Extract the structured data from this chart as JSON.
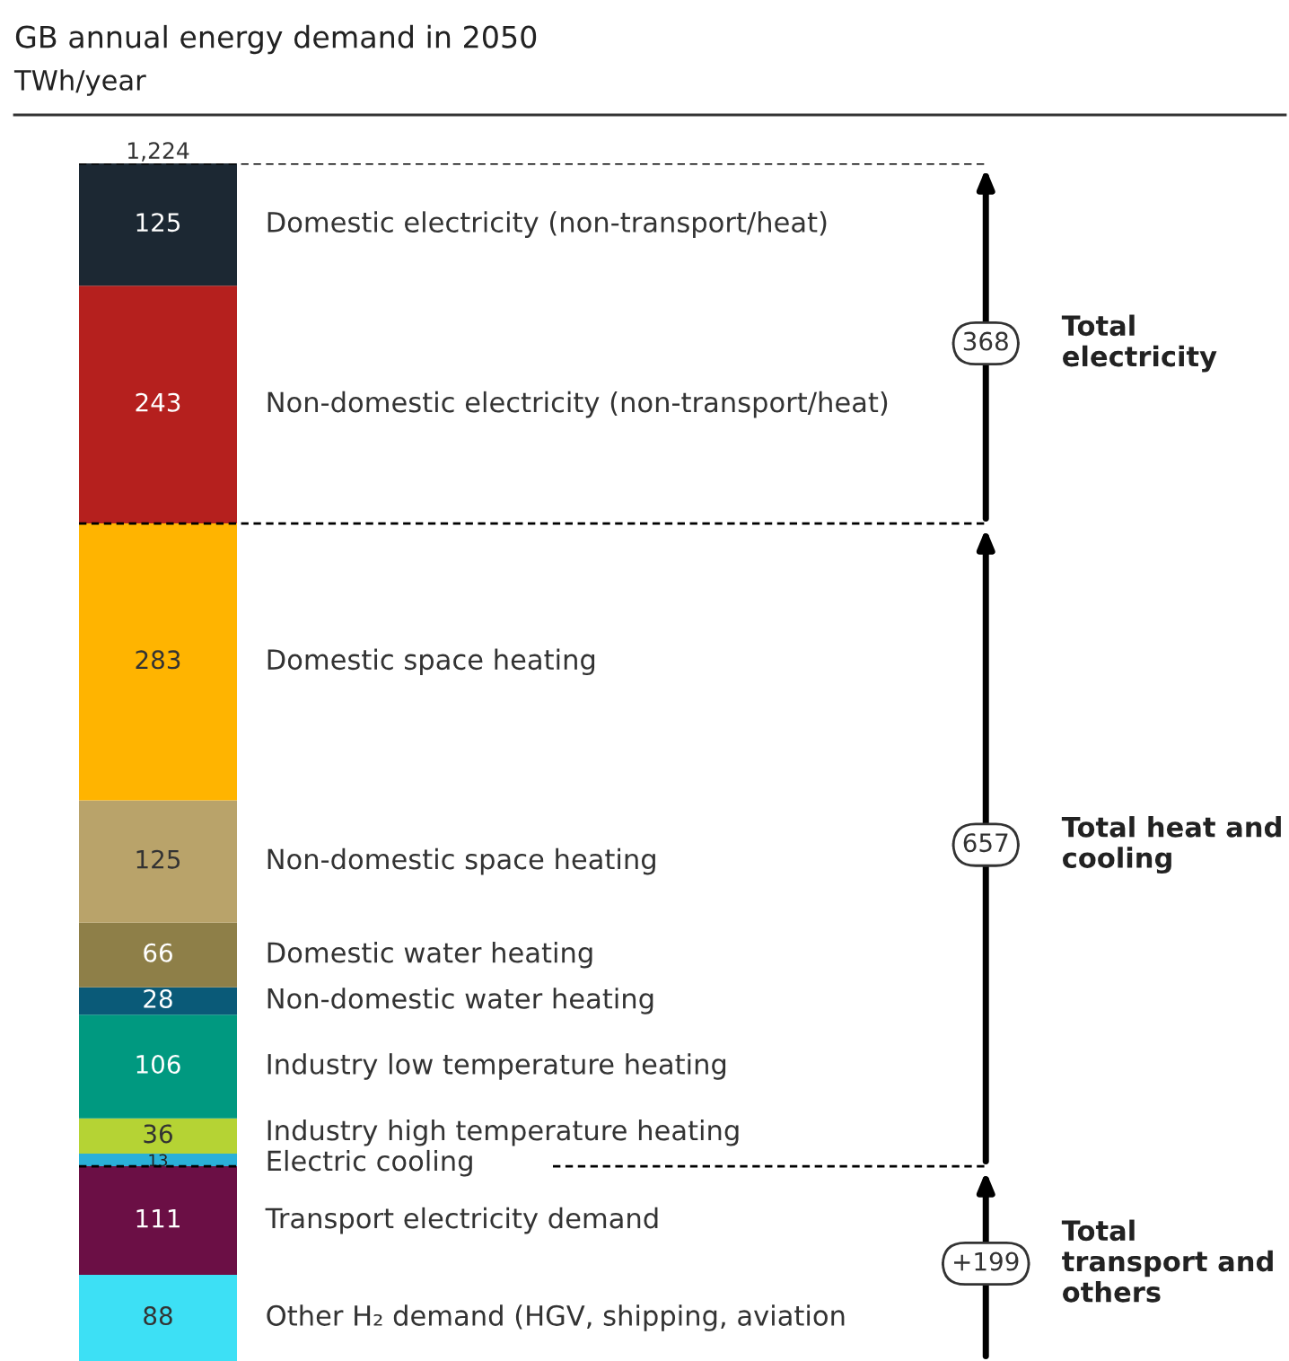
{
  "chart_data": {
    "type": "bar",
    "stacked": true,
    "title": "GB annual energy demand in 2050",
    "subtitle": "TWh/year",
    "categories": [
      null
    ],
    "series": [
      {
        "name": "Other H₂ demand (HGV, shipping, aviation",
        "color": "#3de0f5",
        "values": [
          88
        ]
      },
      {
        "name": "Transport electricity demand",
        "color": "#6b0f45",
        "values": [
          111
        ]
      },
      {
        "name": "Electric cooling",
        "color": "#2ab0d8",
        "values": [
          13
        ]
      },
      {
        "name": "Industry high temperature heating",
        "color": "#b5d334",
        "values": [
          36
        ]
      },
      {
        "name": "Industry low temperature heating",
        "color": "#009980",
        "values": [
          106
        ]
      },
      {
        "name": "Non-domestic water heating",
        "color": "#0a5a78",
        "values": [
          28
        ]
      },
      {
        "name": "Domestic water heating",
        "color": "#8e7f48",
        "values": [
          66
        ]
      },
      {
        "name": "Non-domestic space heating",
        "color": "#b9a36a",
        "values": [
          125
        ]
      },
      {
        "name": "Domestic space heating",
        "color": "#ffb400",
        "values": [
          283
        ]
      },
      {
        "name": "Non-domestic electricity (non-transport/heat)",
        "color": "#b5201e",
        "values": [
          243
        ]
      },
      {
        "name": "Domestic electricity (non-transport/heat)",
        "color": "#1c2833",
        "values": [
          125
        ]
      }
    ],
    "data_labels": true,
    "totals": [
      "1,224"
    ],
    "legend": false,
    "ref_lines": [
      {
        "axis": "y",
        "value": 1224,
        "line_style": "dashed",
        "color": "#000000"
      },
      {
        "axis": "y",
        "value": 856,
        "line_style": "dashed",
        "color": "#000000"
      },
      {
        "axis": "y",
        "value": 199,
        "line_style": "dashed",
        "color": "#000000"
      }
    ],
    "annotations": [
      "368",
      "Total electricity",
      "657",
      "Total heat and cooling",
      "+199",
      "Total transport and others"
    ]
  }
}
